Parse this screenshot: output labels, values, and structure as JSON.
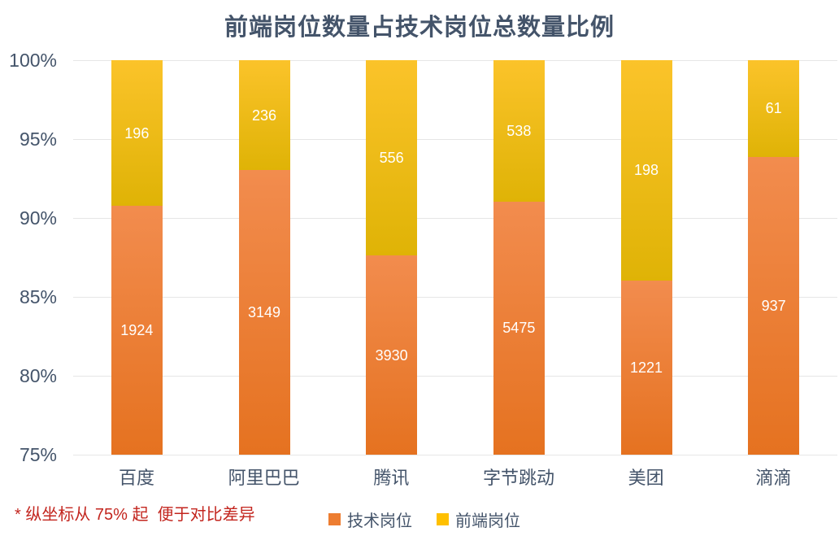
{
  "chart_data": {
    "type": "bar",
    "stacked": true,
    "title": "前端岗位数量占技术岗位总数量比例",
    "categories": [
      "百度",
      "阿里巴巴",
      "腾讯",
      "字节跳动",
      "美团",
      "滴滴"
    ],
    "series": [
      {
        "name": "技术岗位",
        "values": [
          1924,
          3149,
          3930,
          5475,
          1221,
          937
        ],
        "color": "#ED7D31",
        "gradient_top": "#F28C4E",
        "gradient_bottom": "#E57220"
      },
      {
        "name": "前端岗位",
        "values": [
          196,
          236,
          556,
          538,
          198,
          61
        ],
        "color": "#FFC000",
        "gradient_top": "#FBC32A",
        "gradient_bottom": "#DFB306"
      }
    ],
    "y_tick_labels": [
      "100%",
      "95%",
      "90%",
      "85%",
      "80%",
      "75%"
    ],
    "y_ticks": [
      100,
      95,
      90,
      85,
      80,
      75
    ],
    "ylim": [
      75,
      100
    ],
    "xlabel": "",
    "ylabel": "",
    "grid": true,
    "legend_position": "bottom"
  },
  "note": {
    "text": "* 纵坐标从 75% 起  便于对比差异",
    "color": "#C3261F"
  },
  "colors": {
    "text": "#44546A",
    "gridline": "#E6E6E6",
    "value_label": "#FFFFFF",
    "background": "#FFFFFF"
  }
}
